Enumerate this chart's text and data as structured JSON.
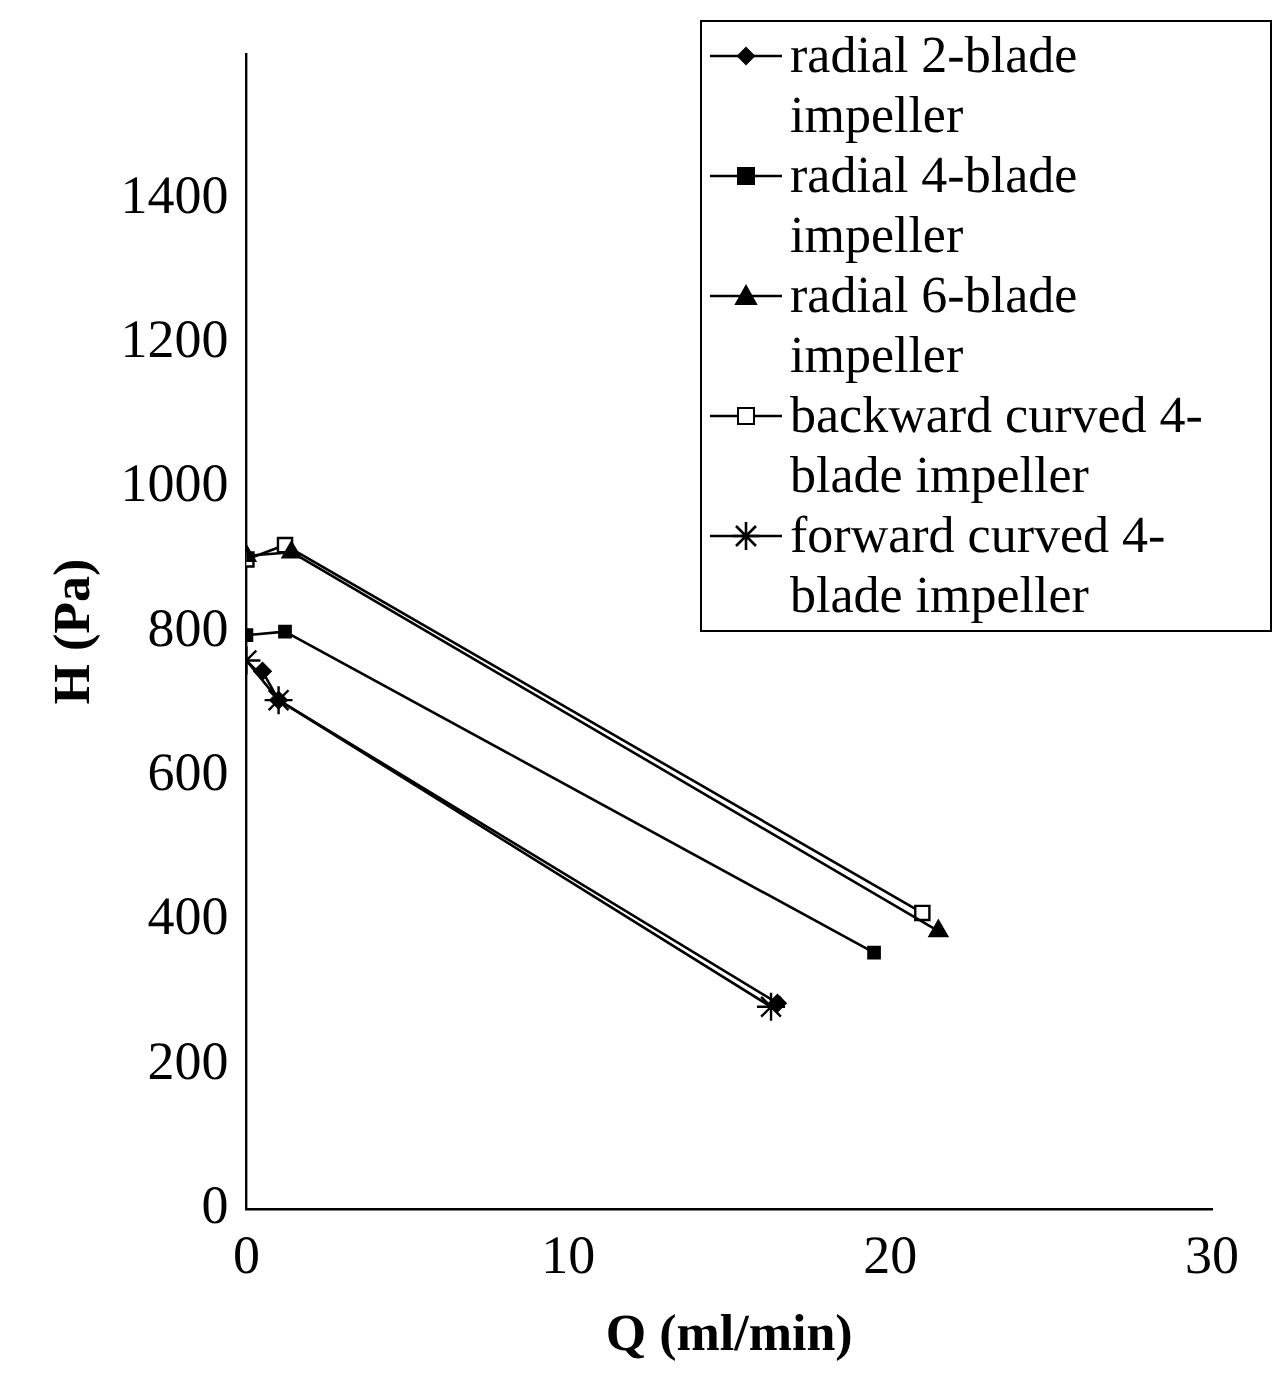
{
  "chart_data": {
    "type": "line",
    "xlabel": "Q (ml/min)",
    "ylabel": "H (Pa)",
    "xlim": [
      0,
      30
    ],
    "xticks": [
      0,
      10,
      20,
      30
    ],
    "ylim": [
      0,
      1600
    ],
    "yticks": [
      0,
      200,
      400,
      600,
      800,
      1000,
      1200,
      1400
    ],
    "grid": false,
    "legend": "top right",
    "line_style": "solid",
    "series": [
      {
        "name": "radial 2-blade impeller",
        "color": "#000000",
        "marker": "diamond",
        "x": [
          0.5,
          1,
          16.5
        ],
        "values": [
          745,
          705,
          285
        ]
      },
      {
        "name": "radial 4-blade impeller",
        "color": "#000000",
        "marker": "square",
        "x": [
          0,
          1.2,
          19.5
        ],
        "values": [
          795,
          800,
          355
        ]
      },
      {
        "name": "radial 6-blade impeller",
        "color": "#000000",
        "marker": "triangle",
        "x": [
          0,
          1.4,
          21.5
        ],
        "values": [
          905,
          910,
          385
        ]
      },
      {
        "name": "backward curved 4-blade impeller",
        "color": "#000000",
        "marker": "square-open",
        "x": [
          0,
          1.2,
          21
        ],
        "values": [
          900,
          920,
          410
        ]
      },
      {
        "name": "forward curved 4-blade impeller",
        "color": "#000000",
        "marker": "cross",
        "x": [
          0,
          1,
          16.3
        ],
        "values": [
          760,
          705,
          280
        ]
      }
    ]
  }
}
